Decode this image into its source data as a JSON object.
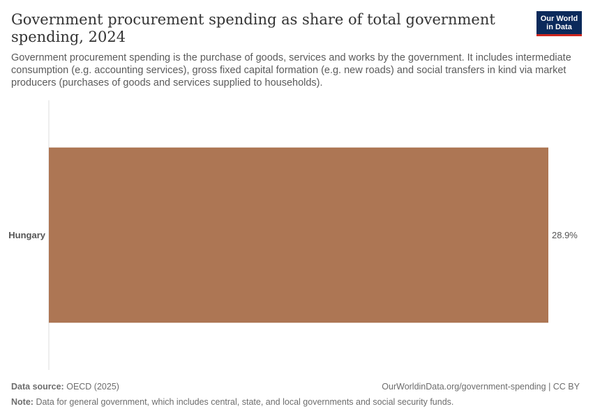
{
  "header": {
    "title": "Government procurement spending as share of total government spending, 2024",
    "subtitle": "Government procurement spending is the purchase of goods, services and works by the government. It includes intermediate consumption (e.g. accounting services), gross fixed capital formation (e.g. new roads) and social transfers in kind via market producers (purchases of goods and services supplied to households).",
    "logo_line1": "Our World",
    "logo_line2": "in Data"
  },
  "chart_data": {
    "type": "bar",
    "orientation": "horizontal",
    "categories": [
      "Hungary"
    ],
    "values": [
      28.9
    ],
    "value_labels": [
      "28.9%"
    ],
    "unit": "%",
    "xlim": [
      0,
      28.9
    ],
    "grid": false,
    "colors": [
      "#ad7654"
    ]
  },
  "footer": {
    "source_label": "Data source:",
    "source_value": "OECD (2025)",
    "url": "OurWorldinData.org/government-spending | CC BY",
    "note_label": "Note:",
    "note_value": "Data for general government, which includes central, state, and local governments and social security funds."
  }
}
